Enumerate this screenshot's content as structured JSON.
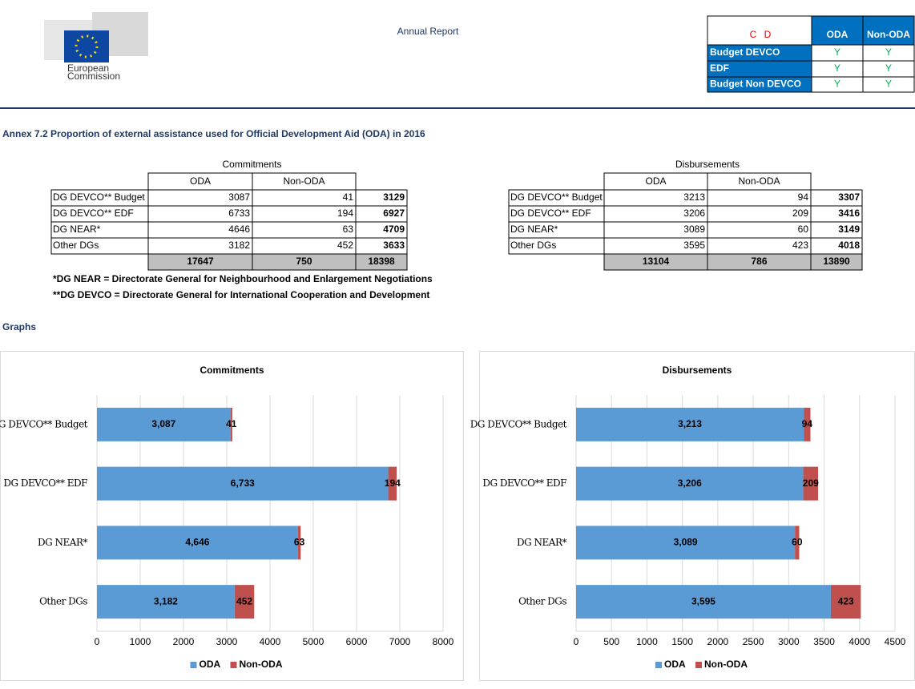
{
  "header": {
    "logo_text": [
      "European",
      "Commission"
    ],
    "title": "Annual Report"
  },
  "legend_table": {
    "corner": [
      "C",
      "D"
    ],
    "columns": [
      "ODA",
      "Non-ODA"
    ],
    "rows": [
      {
        "label": "Budget DEVCO",
        "cells": [
          "Y",
          "Y"
        ]
      },
      {
        "label": "EDF",
        "cells": [
          "Y",
          "Y"
        ]
      },
      {
        "label": "Budget Non DEVCO",
        "cells": [
          "Y",
          "Y"
        ]
      }
    ]
  },
  "annex_title": "Annex 7.2 Proportion of external assistance used for Official Development Aid (ODA) in 2016",
  "tables": [
    {
      "title": "Commitments",
      "columns": [
        "ODA",
        "Non-ODA"
      ],
      "rows": [
        {
          "label": "DG DEVCO** Budget",
          "values": [
            3087,
            41,
            3129
          ]
        },
        {
          "label": "DG DEVCO** EDF",
          "values": [
            6733,
            194,
            6927
          ]
        },
        {
          "label": "DG NEAR*",
          "values": [
            4646,
            63,
            4709
          ]
        },
        {
          "label": "Other DGs",
          "values": [
            3182,
            452,
            3633
          ]
        }
      ],
      "totals": [
        17647,
        750,
        18398
      ]
    },
    {
      "title": "Disbursements",
      "columns": [
        "ODA",
        "Non-ODA"
      ],
      "rows": [
        {
          "label": "DG DEVCO** Budget",
          "values": [
            3213,
            94,
            3307
          ]
        },
        {
          "label": "DG DEVCO** EDF",
          "values": [
            3206,
            209,
            3416
          ]
        },
        {
          "label": "DG NEAR*",
          "values": [
            3089,
            60,
            3149
          ]
        },
        {
          "label": "Other DGs",
          "values": [
            3595,
            423,
            4018
          ]
        }
      ],
      "totals": [
        13104,
        786,
        13890
      ]
    }
  ],
  "notes": [
    "*DG NEAR = Directorate General for  Neighbourhood and Enlargement Negotiations",
    "**DG DEVCO = Directorate General for International Cooperation and Development"
  ],
  "graphs_heading": "Graphs",
  "charts": [
    {
      "type": "bar",
      "orientation": "horizontal",
      "stacked": true,
      "title": "Commitments",
      "categories": [
        "DG DEVCO** Budget",
        "DG DEVCO** EDF",
        "DG NEAR*",
        "Other DGs"
      ],
      "series": [
        {
          "name": "ODA",
          "color": "#5b9bd5",
          "values": [
            3087,
            6733,
            4646,
            3182
          ],
          "value_labels": [
            "3,087",
            "6,733",
            "4,646",
            "3,182"
          ]
        },
        {
          "name": "Non-ODA",
          "color": "#c0504d",
          "values": [
            41,
            194,
            63,
            452
          ]
        }
      ],
      "xlim": [
        0,
        8000
      ],
      "xticks": [
        0,
        1000,
        2000,
        3000,
        4000,
        5000,
        6000,
        7000,
        8000
      ],
      "grid": true,
      "legend": "bottom"
    },
    {
      "type": "bar",
      "orientation": "horizontal",
      "stacked": true,
      "title": "Disbursements",
      "categories": [
        "DG DEVCO** Budget",
        "DG DEVCO** EDF",
        "DG NEAR*",
        "Other DGs"
      ],
      "series": [
        {
          "name": "ODA",
          "color": "#5b9bd5",
          "values": [
            3213,
            3206,
            3089,
            3595
          ],
          "value_labels": [
            "3,213",
            "3,206",
            "3,089",
            "3,595"
          ]
        },
        {
          "name": "Non-ODA",
          "color": "#c0504d",
          "values": [
            94,
            209,
            60,
            423
          ]
        }
      ],
      "xlim": [
        0,
        4500
      ],
      "xticks": [
        0,
        500,
        1000,
        1500,
        2000,
        2500,
        3000,
        3500,
        4000,
        4500
      ],
      "grid": true,
      "legend": "bottom"
    }
  ]
}
